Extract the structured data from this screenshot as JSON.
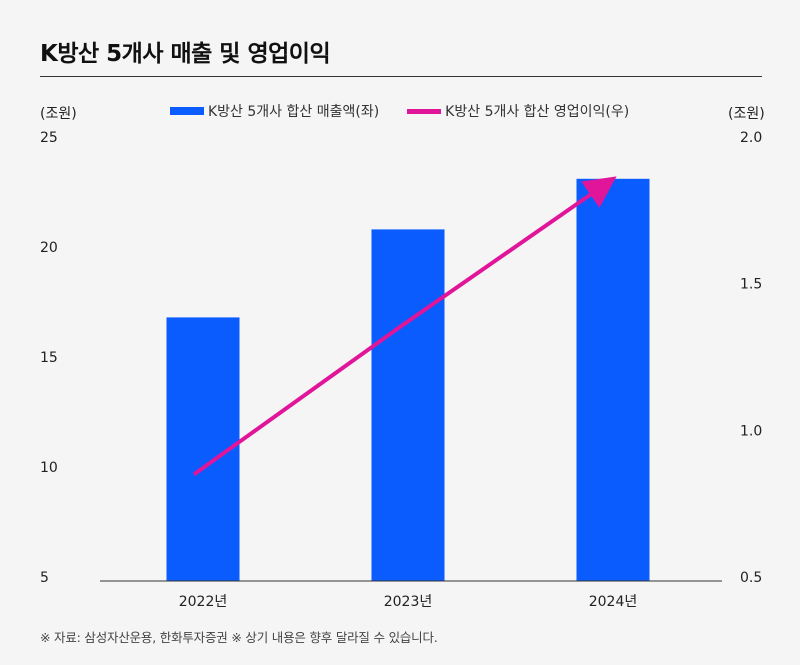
{
  "title": "K방산 5개사 매출 및 영업이익",
  "left_unit": "(조원)",
  "right_unit": "(조원)",
  "footnote": "※ 자료: 삼성자산운용, 한화투자증권 ※ 상기 내용은 향후 달라질 수 있습니다.",
  "colors": {
    "bar": "#0a5cff",
    "line": "#e0159a"
  },
  "chart_data": {
    "type": "bar",
    "categories": [
      "2022년",
      "2023년",
      "2024년"
    ],
    "series": [
      {
        "name": "K방산 5개사 합산 매출액(좌)",
        "type": "bar",
        "axis": "left",
        "values": [
          16.8,
          20.8,
          23.1
        ]
      },
      {
        "name": "K방산 5개사 합산 영업이익(우)",
        "type": "line",
        "axis": "right",
        "values": [
          0.85,
          1.35,
          1.85
        ]
      }
    ],
    "left_axis": {
      "ylim": [
        5,
        25
      ],
      "ticks": [
        "25",
        "20",
        "15",
        "10",
        "5"
      ]
    },
    "right_axis": {
      "ylim": [
        0.5,
        2.0
      ],
      "ticks": [
        "2.0",
        "1.5",
        "1.0",
        "0.5"
      ]
    },
    "grid": false,
    "legend_position": "top"
  }
}
